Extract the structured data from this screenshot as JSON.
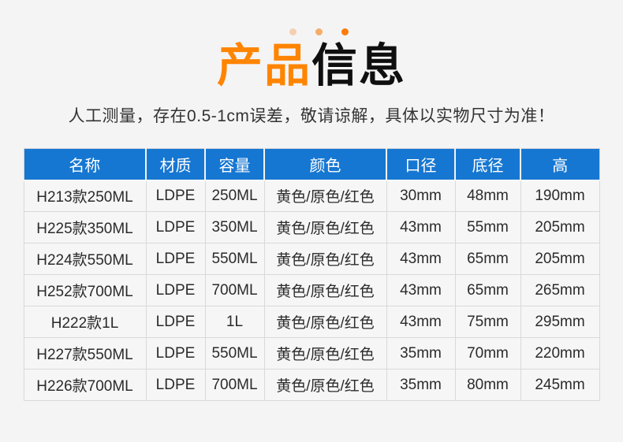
{
  "page": {
    "bg_color": "#f4f4f5"
  },
  "header": {
    "dots_icon": "three-orange-dots",
    "dots_color": "#f97c0d",
    "title": {
      "highlight": "产品",
      "rest": "信息",
      "highlight_color": "#ff8400",
      "rest_color": "#0f0f0f"
    },
    "subtitle": "人工测量，存在0.5-1cm误差，敬请谅解，具体以实物尺寸为准！"
  },
  "table": {
    "header_bg": "#1677d2",
    "columns": [
      "名称",
      "材质",
      "容量",
      "颜色",
      "口径",
      "底径",
      "高"
    ],
    "rows": [
      [
        "H213款250ML",
        "LDPE",
        "250ML",
        "黄色/原色/红色",
        "30mm",
        "48mm",
        "190mm"
      ],
      [
        "H225款350ML",
        "LDPE",
        "350ML",
        "黄色/原色/红色",
        "43mm",
        "55mm",
        "205mm"
      ],
      [
        "H224款550ML",
        "LDPE",
        "550ML",
        "黄色/原色/红色",
        "43mm",
        "65mm",
        "205mm"
      ],
      [
        "H252款700ML",
        "LDPE",
        "700ML",
        "黄色/原色/红色",
        "43mm",
        "65mm",
        "265mm"
      ],
      [
        "H222款1L",
        "LDPE",
        "1L",
        "黄色/原色/红色",
        "43mm",
        "75mm",
        "295mm"
      ],
      [
        "H227款550ML",
        "LDPE",
        "550ML",
        "黄色/原色/红色",
        "35mm",
        "70mm",
        "220mm"
      ],
      [
        "H226款700ML",
        "LDPE",
        "700ML",
        "黄色/原色/红色",
        "35mm",
        "80mm",
        "245mm"
      ]
    ]
  }
}
